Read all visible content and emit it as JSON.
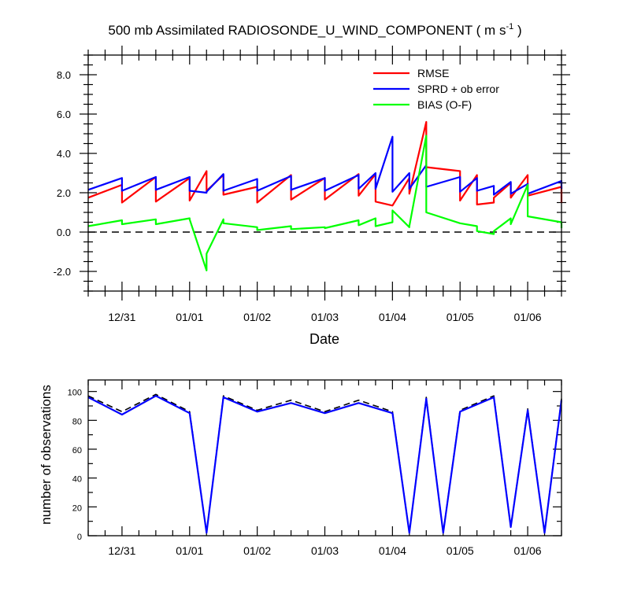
{
  "chart_data": [
    {
      "type": "line",
      "title": "500 mb Assimilated RADIOSONDE_U_WIND_COMPONENT ( m s",
      "title_sup": "-1",
      "title_close": " )",
      "xlabel": "Date",
      "ylabel": "",
      "xlim": [
        0.0,
        7.0
      ],
      "ylim": [
        -3.0,
        9.0
      ],
      "x_ticks": [
        0.5,
        1.5,
        2.5,
        3.5,
        4.5,
        5.5,
        6.5
      ],
      "x_tick_labels": [
        "12/31",
        "01/01",
        "01/02",
        "01/03",
        "01/04",
        "01/05",
        "01/06"
      ],
      "y_ticks": [
        -2.0,
        0.0,
        2.0,
        4.0,
        6.0,
        8.0
      ],
      "y_tick_labels": [
        "-2.0",
        "0.0",
        "2.0",
        "4.0",
        "6.0",
        "8.0"
      ],
      "reference_line": {
        "y": 0.0,
        "style": "dashed"
      },
      "legend": {
        "placement": "top-right"
      },
      "series": [
        {
          "name": "RMSE",
          "color": "#ff0000",
          "x": [
            0,
            0.5,
            0.5,
            1.0,
            1.0,
            1.5,
            1.5,
            1.75,
            1.75,
            2.0,
            2.0,
            2.5,
            2.5,
            3.0,
            3.0,
            3.5,
            3.5,
            4.0,
            4.0,
            4.25,
            4.25,
            4.5,
            4.5,
            4.75,
            4.75,
            5.0,
            5.0,
            5.5,
            5.5,
            5.75,
            5.75,
            6.0,
            6.0,
            6.25,
            6.25,
            6.5,
            6.5,
            7.0,
            7.0
          ],
          "values": [
            1.75,
            2.4,
            1.5,
            2.8,
            1.55,
            2.75,
            1.6,
            3.1,
            2.1,
            2.9,
            1.9,
            2.3,
            1.5,
            2.9,
            1.65,
            2.75,
            1.65,
            2.95,
            1.85,
            2.95,
            1.55,
            1.35,
            1.35,
            2.75,
            1.95,
            5.6,
            3.3,
            3.1,
            1.6,
            2.9,
            1.4,
            1.5,
            1.75,
            2.5,
            1.75,
            2.9,
            1.85,
            2.3,
            1.5
          ]
        },
        {
          "name": "SPRD + ob error",
          "color": "#0000ff",
          "x": [
            0,
            0.5,
            0.5,
            1.0,
            1.0,
            1.5,
            1.5,
            1.75,
            1.75,
            2.0,
            2.0,
            2.5,
            2.5,
            3.0,
            3.0,
            3.5,
            3.5,
            4.0,
            4.0,
            4.25,
            4.25,
            4.5,
            4.5,
            4.75,
            4.75,
            5.0,
            5.0,
            5.5,
            5.5,
            5.75,
            5.75,
            6.0,
            6.0,
            6.25,
            6.25,
            6.5,
            6.5,
            7.0,
            7.0
          ],
          "values": [
            2.15,
            2.75,
            2.1,
            2.8,
            2.15,
            2.8,
            2.1,
            2.0,
            2.05,
            2.95,
            2.1,
            2.7,
            2.1,
            2.85,
            2.15,
            2.75,
            2.1,
            2.9,
            2.2,
            3.0,
            2.2,
            4.85,
            2.05,
            3.0,
            2.2,
            3.4,
            2.3,
            2.8,
            2.05,
            2.75,
            2.1,
            2.35,
            1.9,
            2.55,
            1.95,
            2.45,
            1.95,
            2.6,
            2.2
          ]
        },
        {
          "name": "BIAS (O-F)",
          "color": "#00ff00",
          "x": [
            0,
            0.5,
            0.5,
            1.0,
            1.0,
            1.5,
            1.5,
            1.75,
            1.75,
            2.0,
            2.0,
            2.5,
            2.5,
            3.0,
            3.0,
            3.5,
            3.5,
            4.0,
            4.0,
            4.25,
            4.25,
            4.5,
            4.5,
            4.75,
            4.75,
            5.0,
            5.0,
            5.5,
            5.5,
            5.75,
            5.75,
            6.0,
            6.0,
            6.25,
            6.25,
            6.5,
            6.5,
            7.0,
            7.0
          ],
          "values": [
            0.3,
            0.6,
            0.4,
            0.65,
            0.4,
            0.7,
            0.65,
            -1.95,
            -1.1,
            0.65,
            0.45,
            0.25,
            0.1,
            0.3,
            0.15,
            0.25,
            0.2,
            0.6,
            0.35,
            0.7,
            0.3,
            0.5,
            1.1,
            0.25,
            0.3,
            4.9,
            1.0,
            0.45,
            0.45,
            0.3,
            0.05,
            -0.1,
            0.05,
            0.7,
            0.4,
            2.4,
            0.8,
            0.5,
            0.2
          ]
        }
      ]
    },
    {
      "type": "line",
      "title": "",
      "xlabel": "",
      "ylabel": "number of observations",
      "xlim": [
        0.0,
        7.0
      ],
      "ylim": [
        0,
        108
      ],
      "x_ticks": [
        0.5,
        1.5,
        2.5,
        3.5,
        4.5,
        5.5,
        6.5
      ],
      "x_tick_labels": [
        "12/31",
        "01/01",
        "01/02",
        "01/03",
        "01/04",
        "01/05",
        "01/06"
      ],
      "y_ticks": [
        0,
        20,
        40,
        60,
        80,
        100
      ],
      "y_tick_labels": [
        "0",
        "20",
        "40",
        "60",
        "80",
        "100"
      ],
      "legend": {
        "placement": "none"
      },
      "series": [
        {
          "name": "",
          "color": "#000000",
          "style": "dashed",
          "x": [
            0,
            0.5,
            1.0,
            1.5,
            1.75,
            2.0,
            2.5,
            3.0,
            3.5,
            4.0,
            4.5,
            4.75,
            5.0,
            5.25,
            5.5,
            6.0,
            6.25,
            6.5,
            6.75,
            7.0
          ],
          "values": [
            97,
            86,
            98,
            86,
            2,
            97,
            87,
            94,
            86,
            94,
            86,
            2,
            96,
            2,
            87,
            97,
            6,
            88,
            2,
            95
          ]
        },
        {
          "name": "",
          "color": "#0000ff",
          "style": "solid",
          "x": [
            0,
            0.5,
            1.0,
            1.5,
            1.75,
            2.0,
            2.5,
            3.0,
            3.5,
            4.0,
            4.5,
            4.75,
            5.0,
            5.25,
            5.5,
            6.0,
            6.25,
            6.5,
            6.75,
            7.0
          ],
          "values": [
            96,
            84,
            97,
            85,
            2,
            96,
            86,
            92,
            85,
            92,
            85,
            2,
            95,
            2,
            86,
            96,
            6,
            87,
            2,
            94
          ]
        }
      ]
    }
  ]
}
